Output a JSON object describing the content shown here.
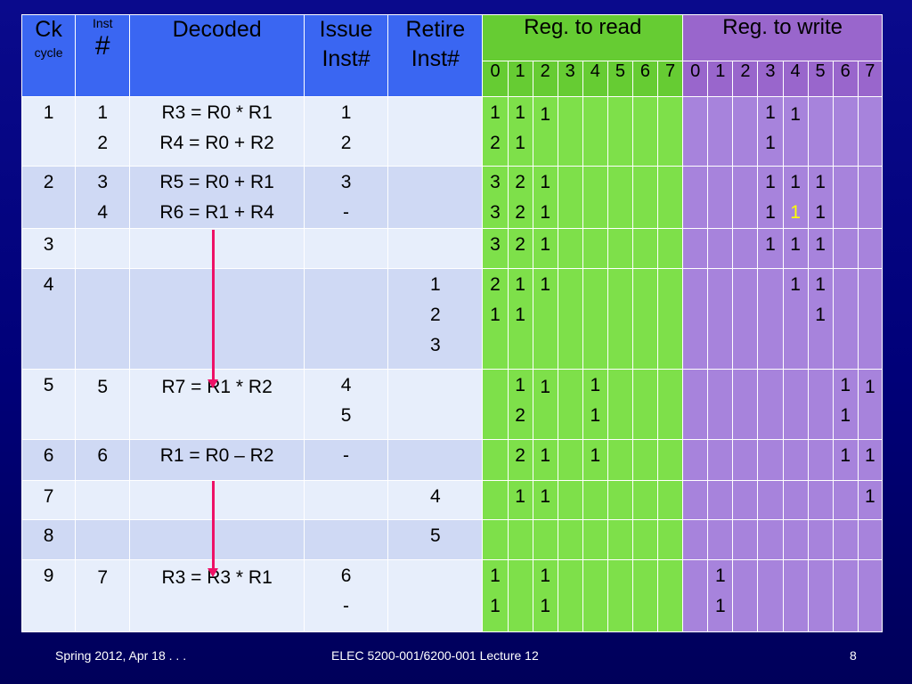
{
  "header": {
    "ck": "Ck",
    "cycle": "cycle",
    "inst": "Inst",
    "hash": "#",
    "decoded": "Decoded",
    "issue_1": "Issue",
    "issue_2": "Inst#",
    "retire_1": "Retire",
    "retire_2": "Inst#",
    "reg_read": "Reg.  to read",
    "reg_write": "Reg. to write",
    "reg_numbers": [
      "0",
      "1",
      "2",
      "3",
      "4",
      "5",
      "6",
      "7"
    ]
  },
  "rows": [
    {
      "ck": [
        "1"
      ],
      "inst": [
        "1",
        "2"
      ],
      "decoded": [
        "R3 = R0 * R1",
        "R4 = R0 + R2"
      ],
      "issue": [
        "1",
        "2"
      ],
      "retire": [],
      "read": [
        [
          "1",
          "2"
        ],
        [
          "1",
          "1"
        ],
        [
          "",
          "1"
        ],
        [],
        [],
        [],
        [],
        []
      ],
      "write": [
        [],
        [],
        [],
        [
          "1",
          "1"
        ],
        [
          "",
          "1"
        ],
        [],
        [],
        []
      ]
    },
    {
      "ck": [
        "2"
      ],
      "inst": [
        "3",
        "4"
      ],
      "decoded": [
        "R5 = R0 + R1",
        "R6 = R1 + R4"
      ],
      "issue": [
        "3",
        "-"
      ],
      "retire": [],
      "read": [
        [
          "3",
          "3"
        ],
        [
          "2",
          "2"
        ],
        [
          "1",
          "1"
        ],
        [],
        [],
        [],
        [],
        []
      ],
      "write": [
        [],
        [],
        [],
        [
          "1",
          "1"
        ],
        [
          "1",
          "1"
        ],
        [
          "1",
          "1"
        ],
        [],
        []
      ]
    },
    {
      "ck": [
        "3"
      ],
      "inst": [],
      "decoded": [],
      "issue": [],
      "retire": [],
      "read": [
        [
          "3"
        ],
        [
          "2"
        ],
        [
          "1"
        ],
        [],
        [],
        [],
        [],
        []
      ],
      "write": [
        [],
        [],
        [],
        [
          "1"
        ],
        [
          "1"
        ],
        [
          "1"
        ],
        [],
        []
      ]
    },
    {
      "ck": [
        "4"
      ],
      "inst": [],
      "decoded": [],
      "issue": [],
      "retire": [
        "1",
        "2",
        "3"
      ],
      "read": [
        [
          "2",
          "1"
        ],
        [
          "1",
          "1"
        ],
        [
          "1"
        ],
        [],
        [],
        [],
        [],
        []
      ],
      "write": [
        [],
        [],
        [],
        [],
        [
          "1"
        ],
        [
          "1",
          "1"
        ],
        [],
        []
      ]
    },
    {
      "ck": [
        "5"
      ],
      "inst": [
        "",
        "5"
      ],
      "decoded": [
        "",
        "R7 = R1 * R2"
      ],
      "issue": [
        "4",
        "5"
      ],
      "retire": [],
      "read": [
        [],
        [
          "1",
          "2"
        ],
        [
          "",
          "1"
        ],
        [],
        [
          "1",
          "1"
        ],
        [],
        [],
        []
      ],
      "write": [
        [],
        [],
        [],
        [],
        [],
        [],
        [
          "1",
          "1"
        ],
        [
          "",
          "1"
        ]
      ]
    },
    {
      "ck": [
        "6"
      ],
      "inst": [
        "6"
      ],
      "decoded": [
        "R1 = R0 – R2"
      ],
      "issue": [
        "-"
      ],
      "retire": [],
      "read": [
        [],
        [
          "2"
        ],
        [
          "1"
        ],
        [],
        [
          "1"
        ],
        [],
        [],
        []
      ],
      "write": [
        [],
        [],
        [],
        [],
        [],
        [],
        [
          "1"
        ],
        [
          "1"
        ]
      ]
    },
    {
      "ck": [
        "7"
      ],
      "inst": [],
      "decoded": [],
      "issue": [],
      "retire": [
        "4"
      ],
      "read": [
        [],
        [
          "1"
        ],
        [
          "1"
        ],
        [],
        [],
        [],
        [],
        []
      ],
      "write": [
        [],
        [],
        [],
        [],
        [],
        [],
        [],
        [
          "1"
        ]
      ]
    },
    {
      "ck": [
        "8"
      ],
      "inst": [],
      "decoded": [],
      "issue": [],
      "retire": [
        "5"
      ],
      "read": [
        [],
        [],
        [],
        [],
        [],
        [],
        [],
        []
      ],
      "write": [
        [],
        [],
        [],
        [],
        [],
        [],
        [],
        []
      ]
    },
    {
      "ck": [
        "9"
      ],
      "inst": [
        "",
        "7"
      ],
      "decoded": [
        "",
        "R3 = R3 * R1"
      ],
      "issue": [
        "6",
        "-"
      ],
      "retire": [],
      "read": [
        [
          "1",
          "1"
        ],
        [],
        [
          "1",
          "1"
        ],
        [],
        [],
        [],
        [],
        []
      ],
      "write": [
        [],
        [
          "1",
          "1"
        ],
        [],
        [],
        [],
        [],
        [],
        []
      ]
    }
  ],
  "highlight": {
    "color": "#ffff00",
    "row": 2,
    "field": "write",
    "col": 4,
    "line": 2
  },
  "colors": {
    "header_blue": "#3a66f2",
    "read_green": "#66cc33",
    "write_purple": "#9966cc",
    "arrow": "#ee1166"
  },
  "footer": {
    "date": "Spring 2012, Apr 18 . . .",
    "course": "ELEC 5200-001/6200-001 Lecture 12",
    "page": "8"
  }
}
